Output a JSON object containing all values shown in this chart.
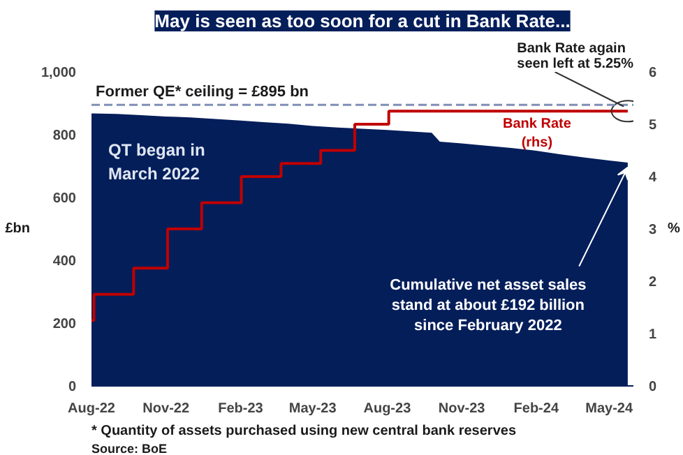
{
  "chart_data": {
    "type": "area",
    "title": "May is seen as too soon for a cut in Bank Rate...",
    "ylabel": "£bn",
    "y2label": "%",
    "xlim": [
      "2022-08-01",
      "2024-05-31"
    ],
    "xticks": [
      {
        "value": "2022-08-01",
        "label": "Aug-22"
      },
      {
        "value": "2022-11-01",
        "label": "Nov-22"
      },
      {
        "value": "2023-02-01",
        "label": "Feb-23"
      },
      {
        "value": "2023-05-01",
        "label": "May-23"
      },
      {
        "value": "2023-08-01",
        "label": "Aug-23"
      },
      {
        "value": "2023-11-01",
        "label": "Nov-23"
      },
      {
        "value": "2024-02-01",
        "label": "Feb-24"
      },
      {
        "value": "2024-05-01",
        "label": "May-24"
      }
    ],
    "ylim": [
      0,
      1000
    ],
    "yticks": [
      0,
      200,
      400,
      600,
      800,
      {
        "value": 1000,
        "label": "1,000"
      }
    ],
    "y2lim": [
      0,
      6
    ],
    "y2ticks": [
      0,
      1,
      2,
      3,
      4,
      5,
      6
    ],
    "grid": false,
    "series": [
      {
        "color": "#041e5a",
        "x": [
          "2022-08-01",
          "2022-09-01",
          "2022-10-01",
          "2022-11-01",
          "2022-12-01",
          "2023-01-01",
          "2023-02-01",
          "2023-03-01",
          "2023-04-01",
          "2023-05-01",
          "2023-06-01",
          "2023-07-01",
          "2023-08-01",
          "2023-09-01",
          "2023-09-25",
          "2023-10-05",
          "2023-11-01",
          "2023-12-01",
          "2024-01-01",
          "2024-02-01",
          "2024-03-01",
          "2024-04-01",
          "2024-05-01",
          "2024-05-24"
        ],
        "values": [
          868,
          866,
          862,
          858,
          855,
          850,
          845,
          840,
          835,
          828,
          823,
          819,
          815,
          810,
          806,
          778,
          772,
          765,
          758,
          749,
          738,
          727,
          718,
          711
        ]
      },
      {
        "type": "step",
        "name": "Bank Rate\n(rhs)",
        "axis": "y2",
        "color": "#c00000",
        "x": [
          "2022-08-01",
          "2022-08-04",
          "2022-09-22",
          "2022-11-03",
          "2022-12-15",
          "2023-02-02",
          "2023-03-23",
          "2023-05-11",
          "2023-06-22",
          "2023-08-03",
          "2024-05-24"
        ],
        "values": [
          1.25,
          1.75,
          2.25,
          3,
          3.5,
          4,
          4.25,
          4.5,
          5,
          5.25,
          5.25
        ]
      }
    ],
    "ref_lines": [
      {
        "axis": "y",
        "value": 895,
        "label": "Former QE* ceiling = £895 bn",
        "color": "#7f8fb5",
        "line_style": "dashed"
      }
    ],
    "annotations": [
      "QT  began in\nMarch 2022",
      {
        "text": "Cumulative net asset sales\nstand at about £192 billion\nsince February 2022",
        "x": "2024-05-24",
        "y": 711
      },
      {
        "text": "Bank Rate again\nseen left at 5.25%",
        "x": "2024-05-24",
        "y": 875
      },
      "* Quantity of assets purchased using new central bank reserves",
      "Source: BoE"
    ]
  }
}
